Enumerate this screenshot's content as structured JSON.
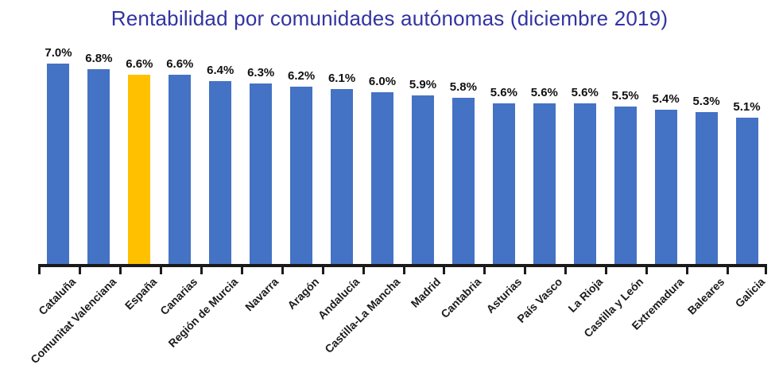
{
  "title": "Rentabilidad por comunidades autónomas (diciembre 2019)",
  "chart_data": {
    "type": "bar",
    "title": "Rentabilidad por comunidades autónomas (diciembre 2019)",
    "categories": [
      "Cataluña",
      "Comunitat Valenciana",
      "España",
      "Canarias",
      "Región de Murcia",
      "Navarra",
      "Aragón",
      "Andalucía",
      "Castilla-La Mancha",
      "Madrid",
      "Cantabria",
      "Asturias",
      "País Vasco",
      "La Rioja",
      "Castilla y León",
      "Extremadura",
      "Baleares",
      "Galicia"
    ],
    "values": [
      7.0,
      6.8,
      6.6,
      6.6,
      6.4,
      6.3,
      6.2,
      6.1,
      6.0,
      5.9,
      5.8,
      5.6,
      5.6,
      5.6,
      5.5,
      5.4,
      5.3,
      5.1
    ],
    "display_values": [
      "7.0%",
      "6.8%",
      "6.6%",
      "6.6%",
      "6.4%",
      "6.3%",
      "6.2%",
      "6.1%",
      "6.0%",
      "5.9%",
      "5.8%",
      "5.6%",
      "5.6%",
      "5.6%",
      "5.5%",
      "5.4%",
      "5.3%",
      "5.1%"
    ],
    "highlight_index": 2,
    "highlight_category": "España",
    "xlabel": "",
    "ylabel": "",
    "ylim": [
      0,
      7.4
    ],
    "grid": false,
    "legend_position": "none",
    "value_labels_shown": true,
    "x_labels_rotation_deg": 45,
    "colors": {
      "bar": "#4472C4",
      "highlight_bar": "#FFC000",
      "title": "#3333A3",
      "value_label": "#111111",
      "axis": "#1a1a1a",
      "x_label": "#1a1a1a",
      "background": "#ffffff"
    }
  }
}
